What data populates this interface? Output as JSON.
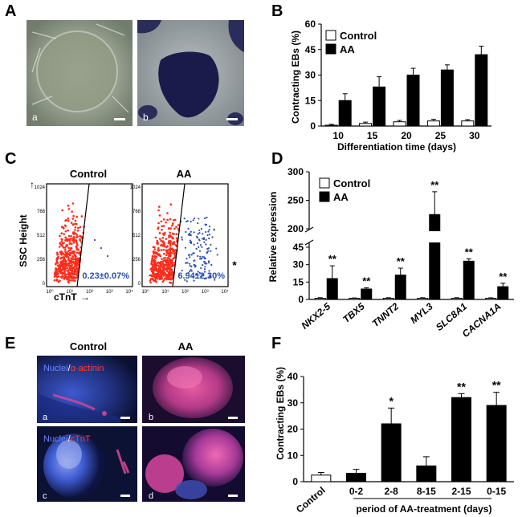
{
  "colors": {
    "aa_bar": "#000000",
    "control_bar": "#ffffff",
    "scatter_red": "#ff2a1a",
    "scatter_blue": "#2a4fb4",
    "annot_blue": "#2a4fb4",
    "fluor_blue": "#2c47b8",
    "fluor_pink": "#e8499b",
    "fluor_red": "#ff3b2e"
  },
  "panels": {
    "A": {
      "letter": "A",
      "images": [
        {
          "label": "a",
          "icon": "phase-contrast-micrograph"
        },
        {
          "label": "b",
          "icon": "stained-micrograph"
        }
      ]
    },
    "B": {
      "letter": "B"
    },
    "C": {
      "letter": "C",
      "ylabel": "SSC Height",
      "xlabel": "cTnT",
      "plots": [
        {
          "title": "Control",
          "annotation": "0.23±0.07%"
        },
        {
          "title": "AA",
          "annotation": "6.94±2.30%",
          "star": "*"
        }
      ],
      "yticks": [
        "1024",
        "768",
        "512",
        "256",
        "0"
      ],
      "xticks": [
        "10⁰",
        "10¹",
        "10²",
        "10³",
        "10⁴"
      ]
    },
    "D": {
      "letter": "D"
    },
    "E": {
      "letter": "E",
      "col_titles": [
        "Control",
        "AA"
      ],
      "row1_stain": {
        "nuclei": "Nuclei",
        "sep": "/",
        "marker": "α-actinin"
      },
      "row2_stain": {
        "nuclei": "Nuclei",
        "sep": "/",
        "marker": "cTnT"
      },
      "labels": [
        "a",
        "b",
        "c",
        "d"
      ]
    },
    "F": {
      "letter": "F"
    }
  },
  "chart_data": [
    {
      "panel": "B",
      "type": "bar",
      "categories": [
        "10",
        "15",
        "20",
        "25",
        "30"
      ],
      "series": [
        {
          "name": "Control",
          "values": [
            0.5,
            1.5,
            2.5,
            3,
            3
          ],
          "errors": [
            0.5,
            0.8,
            0.8,
            1,
            0.8
          ]
        },
        {
          "name": "AA",
          "values": [
            15,
            23,
            30,
            33,
            42
          ],
          "errors": [
            4,
            6,
            4,
            3,
            5
          ]
        }
      ],
      "xlabel": "Differentiation time (days)",
      "ylabel": "Contracting EBs (%)",
      "ylim": [
        0,
        60
      ],
      "yticks": [
        "0",
        "15",
        "30",
        "45",
        "60"
      ],
      "legend": "top-left"
    },
    {
      "panel": "D",
      "type": "bar",
      "categories": [
        "NKX2-5",
        "TBX5",
        "TNNT2",
        "MYL3",
        "SLC8A1",
        "CACNA1A"
      ],
      "series": [
        {
          "name": "Control",
          "values": [
            1,
            1,
            1,
            1,
            1,
            1
          ],
          "errors": [
            0.5,
            0.3,
            0.5,
            0.5,
            0.5,
            0.4
          ]
        },
        {
          "name": "AA",
          "values": [
            18,
            9,
            21,
            225,
            33,
            11
          ],
          "errors": [
            11,
            1,
            6,
            40,
            2,
            3
          ]
        }
      ],
      "significance": [
        "**",
        "**",
        "**",
        "**",
        "**",
        "**"
      ],
      "ylabel": "Relative expression",
      "ylim_lower": [
        0,
        45
      ],
      "ylim_upper": [
        200,
        300
      ],
      "yticks_lower": [
        "0",
        "15",
        "30",
        "45"
      ],
      "yticks_upper": [
        "200",
        "250",
        "300"
      ],
      "legend": "top-left"
    },
    {
      "panel": "F",
      "type": "bar",
      "categories": [
        "Control",
        "0-2",
        "2-8",
        "8-15",
        "2-15",
        "0-15"
      ],
      "values": [
        2.5,
        3.2,
        22,
        6,
        32,
        29
      ],
      "errors": [
        1,
        1.5,
        6,
        3.5,
        1.5,
        5
      ],
      "fills": [
        "#ffffff",
        "#000000",
        "#000000",
        "#000000",
        "#000000",
        "#000000"
      ],
      "significance": [
        "",
        "",
        "*",
        "",
        "**",
        "**"
      ],
      "ylabel": "Contracting EBs (%)",
      "xlabel": "period of AA-treatment (days)",
      "ylim": [
        0,
        40
      ],
      "yticks": [
        "0",
        "10",
        "20",
        "30",
        "40"
      ]
    }
  ]
}
